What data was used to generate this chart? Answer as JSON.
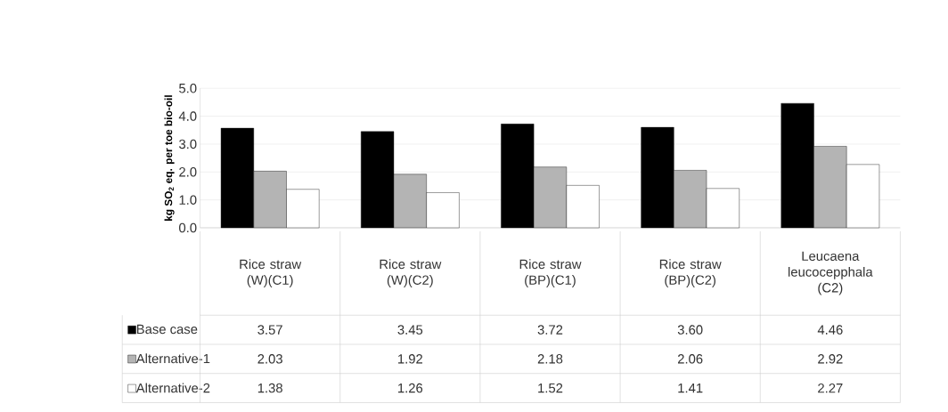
{
  "chart_data": {
    "type": "bar",
    "ylabel": "kg SO$_{2}$ eq. per toe bio-oil",
    "categories": [
      "Rice straw (W)(C1)",
      "Rice straw (W)(C2)",
      "Rice straw (BP)(C1)",
      "Rice straw (BP)(C2)",
      "Leucaena leucocepphala (C2)"
    ],
    "series": [
      {
        "name": "Base case",
        "color": "#000000",
        "values": [
          3.57,
          3.45,
          3.72,
          3.6,
          4.46
        ],
        "value_labels": [
          "3.57",
          "3.45",
          "3.72",
          "3.60",
          "4.46"
        ]
      },
      {
        "name": "Alternative-1",
        "color": "#b4b4b4",
        "values": [
          2.03,
          1.92,
          2.18,
          2.06,
          2.92
        ],
        "value_labels": [
          "2.03",
          "1.92",
          "2.18",
          "2.06",
          "2.92"
        ]
      },
      {
        "name": "Alternative-2",
        "color": "#ffffff",
        "values": [
          1.38,
          1.26,
          1.52,
          1.41,
          2.27
        ],
        "value_labels": [
          "1.38",
          "1.26",
          "1.52",
          "1.41",
          "2.27"
        ]
      }
    ],
    "ylim": [
      0,
      5
    ],
    "yticks": [
      {
        "value": 0,
        "label": "0.0"
      },
      {
        "value": 1,
        "label": "1.0"
      },
      {
        "value": 2,
        "label": "2.0"
      },
      {
        "value": 3,
        "label": "3.0"
      },
      {
        "value": 4,
        "label": "4.0"
      },
      {
        "value": 5,
        "label": "5.0"
      }
    ],
    "grid": "y",
    "legend": "bottom left"
  }
}
